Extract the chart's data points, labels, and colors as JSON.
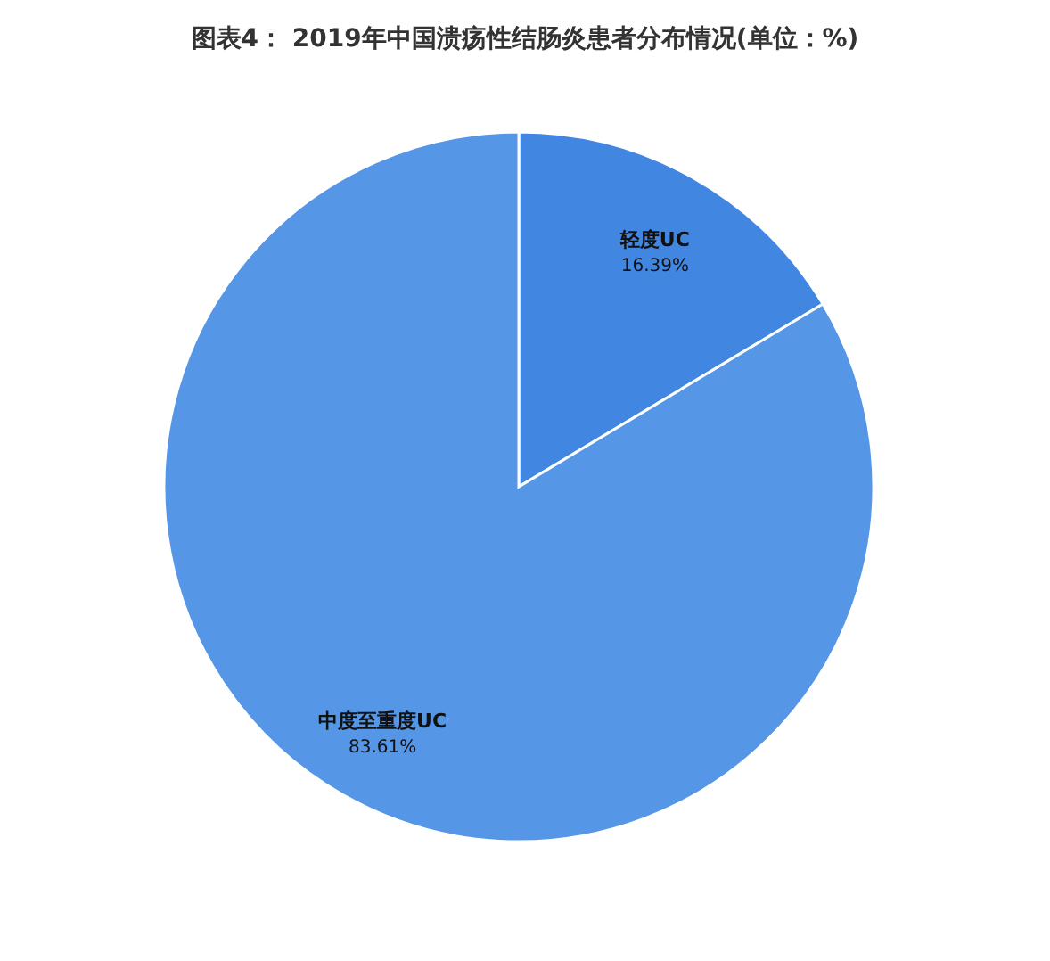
{
  "chart_data": {
    "type": "pie",
    "title": "图表4： 2019年中国溃疡性结肠炎患者分布情况(单位：%)",
    "categories": [
      "轻度UC",
      "中度至重度UC"
    ],
    "values": [
      16.39,
      83.61
    ],
    "colors": [
      "#4186e0",
      "#5596e6"
    ],
    "value_labels": [
      "16.39%",
      "83.61%"
    ],
    "legend": false
  }
}
